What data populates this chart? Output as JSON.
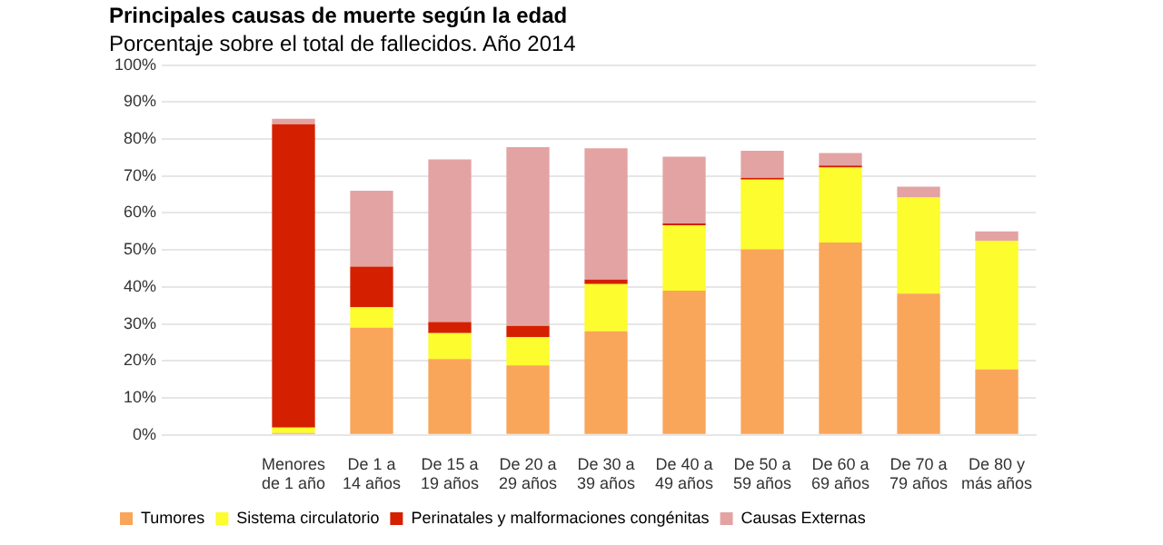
{
  "chart_data": {
    "type": "bar",
    "stacked": true,
    "title": "Principales causas de muerte según la edad",
    "subtitle": "Porcentaje sobre el total de fallecidos. Año 2014",
    "categories": [
      null,
      "Menores de 1 año",
      "De 1 a 14 años",
      "De 15 a 19 años",
      "De 20 a 29 años",
      "De 30 a 39 años",
      "De 40 a 49 años",
      "De 50 a 59 años",
      "De 60 a 69 años",
      "De 70 a 79 años",
      "De 80 y más años"
    ],
    "series": [
      {
        "name": "Tumores",
        "color": "#f9a55a",
        "values": [
          null,
          0.5,
          29,
          20.5,
          18.8,
          28,
          39,
          50.2,
          52,
          38.2,
          17.7
        ]
      },
      {
        "name": "Sistema circulatorio",
        "color": "#fcfc2e",
        "values": [
          null,
          1.5,
          5.5,
          7,
          7.7,
          12.8,
          17.7,
          18.8,
          20.3,
          26,
          34.8
        ]
      },
      {
        "name": "Perinatales y malformaciones congénitas",
        "color": "#d42000",
        "values": [
          null,
          82,
          11,
          3,
          3,
          1.2,
          0.5,
          0.5,
          0.5,
          null,
          null
        ]
      },
      {
        "name": "Causas Externas",
        "color": "#e3a3a3",
        "values": [
          null,
          1.5,
          20.5,
          44,
          48.3,
          35.5,
          18,
          7.3,
          3.4,
          2.9,
          2.5
        ]
      }
    ],
    "ylim": [
      0,
      100
    ],
    "yticks": [
      {
        "value": 0,
        "label": "0%"
      },
      {
        "value": 10,
        "label": "10%"
      },
      {
        "value": 20,
        "label": "20%"
      },
      {
        "value": 30,
        "label": "30%"
      },
      {
        "value": 40,
        "label": "40%"
      },
      {
        "value": 50,
        "label": "50%"
      },
      {
        "value": 60,
        "label": "60%"
      },
      {
        "value": 70,
        "label": "70%"
      },
      {
        "value": 80,
        "label": "80%"
      },
      {
        "value": 90,
        "label": "90%"
      },
      {
        "value": 100,
        "label": "100%"
      }
    ],
    "grid": "y",
    "legend": "bottom"
  }
}
